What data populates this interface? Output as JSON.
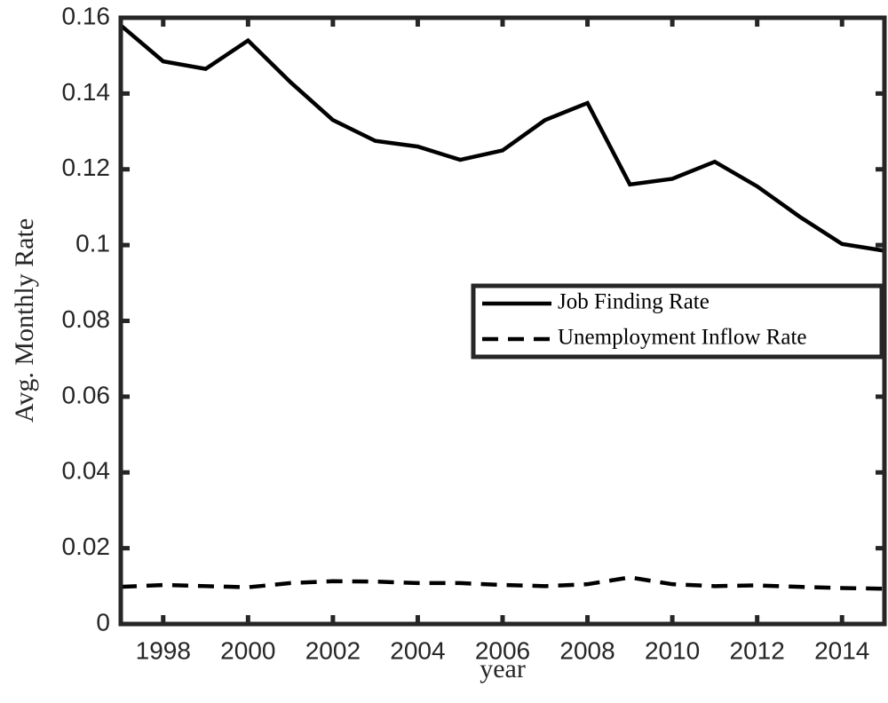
{
  "chart_data": {
    "type": "line",
    "xlabel": "year",
    "ylabel": "Avg. Monthly Rate",
    "x": [
      1997,
      1998,
      1999,
      2000,
      2001,
      2002,
      2003,
      2004,
      2005,
      2006,
      2007,
      2008,
      2009,
      2010,
      2011,
      2012,
      2013,
      2014,
      2015
    ],
    "series": [
      {
        "name": "Job Finding Rate",
        "color": "#000000",
        "dash": "solid",
        "values": [
          0.158,
          0.1485,
          0.1465,
          0.154,
          0.143,
          0.133,
          0.1275,
          0.126,
          0.1225,
          0.125,
          0.133,
          0.1375,
          0.116,
          0.1175,
          0.122,
          0.1155,
          0.1075,
          0.1003,
          0.0985
        ]
      },
      {
        "name": "Unemployment Inflow Rate",
        "color": "#000000",
        "dash": "dashed",
        "values": [
          0.0098,
          0.0103,
          0.01,
          0.0097,
          0.0108,
          0.0113,
          0.0112,
          0.0108,
          0.0108,
          0.0103,
          0.01,
          0.0105,
          0.0123,
          0.0105,
          0.01,
          0.0102,
          0.0098,
          0.0095,
          0.0093
        ]
      }
    ],
    "xlim": [
      1997,
      2015
    ],
    "xticks": [
      1998,
      2000,
      2002,
      2004,
      2006,
      2008,
      2010,
      2012,
      2014
    ],
    "ylim": [
      0,
      0.16
    ],
    "yticks": [
      0,
      0.02,
      0.04,
      0.06,
      0.08,
      0.1,
      0.12,
      0.14,
      0.16
    ],
    "grid": false,
    "legend": "right"
  }
}
